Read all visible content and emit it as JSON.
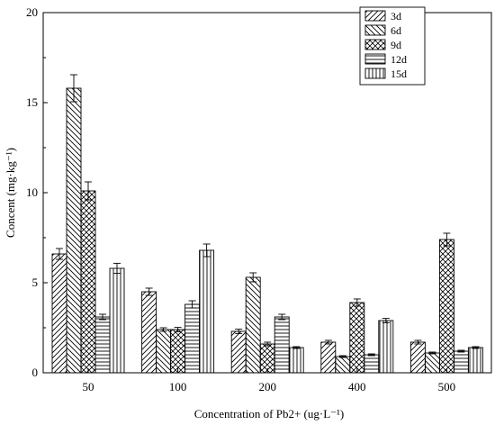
{
  "chart_data": {
    "type": "bar",
    "title": "",
    "xlabel": "Concentration of Pb2+ (ug·L⁻¹)",
    "ylabel": "Concent (mg·kg⁻¹)",
    "ylim": [
      0,
      20
    ],
    "yticks": [
      "0",
      "5",
      "10",
      "15",
      "20"
    ],
    "categories": [
      "50",
      "100",
      "200",
      "400",
      "500"
    ],
    "legend_position": "top-right",
    "series": [
      {
        "name": "3d",
        "pattern": "diag-forward",
        "values": [
          6.6,
          4.5,
          2.3,
          1.7,
          1.7
        ],
        "errors": [
          0.3,
          0.2,
          0.12,
          0.1,
          0.1
        ]
      },
      {
        "name": "6d",
        "pattern": "diag-back",
        "values": [
          15.8,
          2.4,
          5.3,
          0.9,
          1.1
        ],
        "errors": [
          0.75,
          0.1,
          0.25,
          0.05,
          0.05
        ]
      },
      {
        "name": "9d",
        "pattern": "crosshatch",
        "values": [
          10.1,
          2.4,
          1.6,
          3.9,
          7.4
        ],
        "errors": [
          0.5,
          0.12,
          0.1,
          0.2,
          0.35
        ]
      },
      {
        "name": "12d",
        "pattern": "horizontal",
        "values": [
          3.1,
          3.8,
          3.1,
          1.0,
          1.2
        ],
        "errors": [
          0.15,
          0.2,
          0.15,
          0.05,
          0.05
        ]
      },
      {
        "name": "15d",
        "pattern": "vertical",
        "values": [
          5.8,
          6.8,
          1.4,
          2.9,
          1.4
        ],
        "errors": [
          0.28,
          0.35,
          0.05,
          0.12,
          0.05
        ]
      }
    ]
  }
}
